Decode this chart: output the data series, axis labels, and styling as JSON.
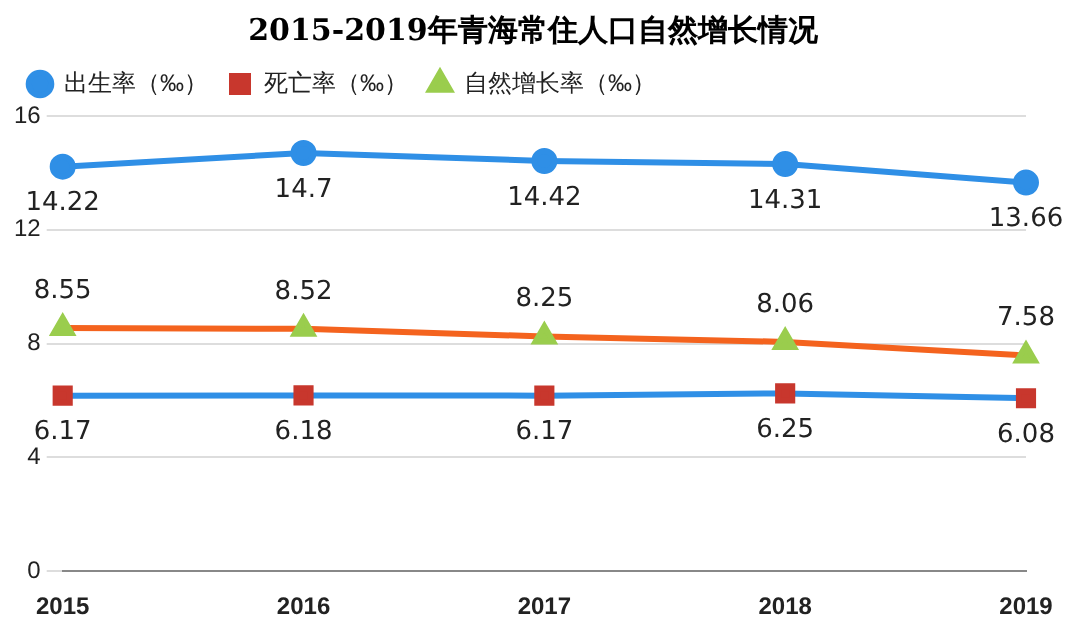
{
  "chart_data": {
    "type": "line",
    "title": "2015-2019年青海常住人口自然增长情况",
    "categories": [
      "2015",
      "2016",
      "2017",
      "2018",
      "2019"
    ],
    "series": [
      {
        "name": "出生率（‰）",
        "color": "#2f8fe6",
        "marker": "circle",
        "values": [
          14.22,
          14.7,
          14.42,
          14.31,
          13.66
        ]
      },
      {
        "name": "死亡率（‰）",
        "color": "#2f8fe6",
        "marker": "square",
        "values": [
          6.17,
          6.18,
          6.17,
          6.25,
          6.08
        ]
      },
      {
        "name": "自然增长率（‰）",
        "color": "#f4631e",
        "marker": "triangle",
        "values": [
          8.55,
          8.52,
          8.25,
          8.06,
          7.58
        ]
      }
    ],
    "ylim": [
      0,
      16
    ],
    "yticks": [
      0,
      4,
      8,
      12,
      16
    ],
    "grid": "y",
    "legend": "top left",
    "data_labels": true
  }
}
